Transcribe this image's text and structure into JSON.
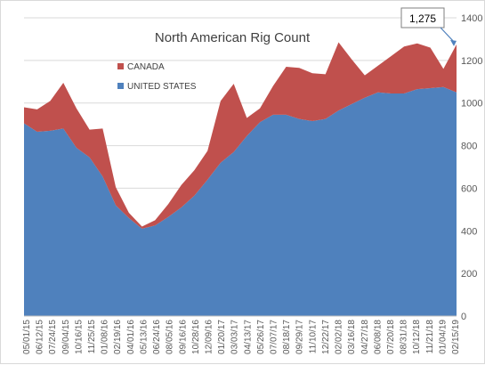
{
  "chart_data": {
    "type": "area",
    "stacked": true,
    "title": "North American Rig Count",
    "ylim": [
      0,
      1400
    ],
    "yticks": [
      0,
      200,
      400,
      600,
      800,
      1000,
      1200,
      1400
    ],
    "grid": true,
    "legend_position": "top-left",
    "x_tick_labels": [
      "05/01/15",
      "06/12/15",
      "07/24/15",
      "09/04/15",
      "10/16/15",
      "11/25/15",
      "01/08/16",
      "02/19/16",
      "04/01/16",
      "05/13/16",
      "06/24/16",
      "08/05/16",
      "09/16/16",
      "10/28/16",
      "12/09/16",
      "01/20/17",
      "03/03/17",
      "04/13/17",
      "05/26/17",
      "07/07/17",
      "08/18/17",
      "09/29/17",
      "11/10/17",
      "12/22/17",
      "02/02/18",
      "03/16/18",
      "04/27/18",
      "06/08/18",
      "07/20/18",
      "08/31/18",
      "10/12/18",
      "11/21/18",
      "01/04/19",
      "02/15/19"
    ],
    "x": [
      "05/01/15",
      "06/12/15",
      "07/24/15",
      "09/04/15",
      "10/16/15",
      "11/25/15",
      "01/08/16",
      "02/19/16",
      "04/01/16",
      "05/13/16",
      "06/24/16",
      "08/05/16",
      "09/16/16",
      "10/28/16",
      "12/09/16",
      "01/20/17",
      "03/03/17",
      "04/13/17",
      "05/26/17",
      "07/07/17",
      "08/18/17",
      "09/29/17",
      "11/10/17",
      "12/22/17",
      "02/02/18",
      "03/16/18",
      "04/27/18",
      "06/08/18",
      "07/20/18",
      "08/31/18",
      "10/12/18",
      "11/21/18",
      "01/04/19",
      "02/15/19"
    ],
    "series": [
      {
        "name": "UNITED STATES",
        "color": "#4f81bd",
        "values": [
          905,
          865,
          870,
          880,
          790,
          745,
          655,
          520,
          460,
          410,
          425,
          465,
          510,
          565,
          640,
          720,
          770,
          845,
          910,
          945,
          945,
          925,
          915,
          925,
          965,
          995,
          1025,
          1050,
          1045,
          1045,
          1065,
          1070,
          1075,
          1050
        ]
      },
      {
        "name": "CANADA",
        "color": "#c0504d",
        "values": [
          75,
          105,
          140,
          215,
          185,
          130,
          225,
          85,
          25,
          10,
          25,
          60,
          105,
          120,
          135,
          290,
          320,
          85,
          65,
          135,
          225,
          240,
          225,
          210,
          320,
          210,
          105,
          125,
          175,
          220,
          215,
          190,
          85,
          225
        ]
      }
    ],
    "annotation": {
      "text": "1,275",
      "target_index": 33,
      "target_value": 1275
    }
  }
}
